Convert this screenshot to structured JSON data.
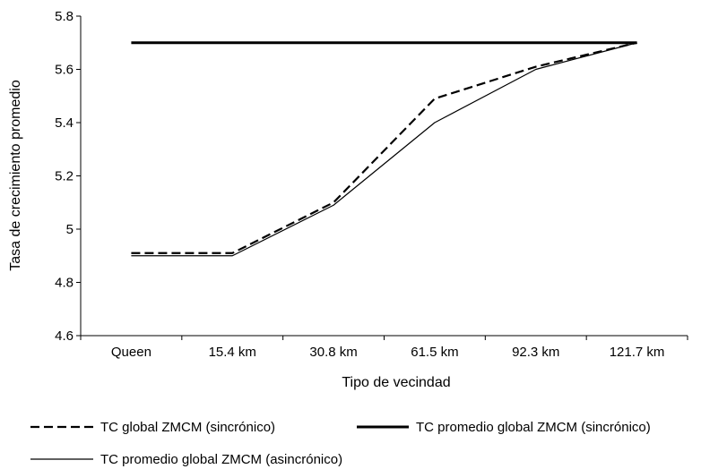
{
  "chart_data": {
    "type": "line",
    "categories": [
      "Queen",
      "15.4 km",
      "30.8 km",
      "61.5 km",
      "92.3 km",
      "121.7 km"
    ],
    "xlabel": "Tipo de vecindad",
    "ylabel": "Tasa de crecimiento promedio",
    "ylim": [
      4.6,
      5.8
    ],
    "yticks": [
      "4.6",
      "4.8",
      "5",
      "5.2",
      "5.4",
      "5.6",
      "5.8"
    ],
    "grid": false,
    "legend_position": "bottom",
    "series": [
      {
        "name": "TC global ZMCM (sincrónico)",
        "style": "dashed",
        "color": "#000000",
        "values": [
          4.91,
          4.91,
          5.1,
          5.49,
          5.61,
          5.7
        ]
      },
      {
        "name": "TC promedio global ZMCM (sincrónico)",
        "style": "thick",
        "color": "#000000",
        "values": [
          5.7,
          5.7,
          5.7,
          5.7,
          5.7,
          5.7
        ]
      },
      {
        "name": "TC promedio global ZMCM (asincrónico)",
        "style": "thin",
        "color": "#000000",
        "values": [
          4.9,
          4.9,
          5.09,
          5.4,
          5.6,
          5.7
        ]
      }
    ]
  }
}
